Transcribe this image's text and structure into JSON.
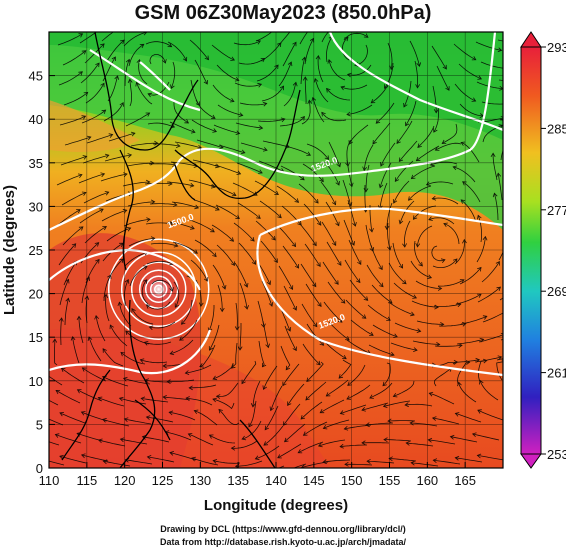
{
  "title": "GSM 06Z30May2023 (850.0hPa)",
  "x_axis": {
    "label": "Longitude (degrees)",
    "ticks": [
      110,
      115,
      120,
      125,
      130,
      135,
      140,
      145,
      150,
      155,
      160,
      165
    ],
    "range": [
      110,
      170
    ]
  },
  "y_axis": {
    "label": "Latitude (degrees)",
    "ticks": [
      0,
      5,
      10,
      15,
      20,
      25,
      30,
      35,
      40,
      45
    ],
    "range": [
      0,
      50
    ]
  },
  "colorbar": {
    "labels": [
      "293",
      "285",
      "277",
      "269",
      "261",
      "253"
    ],
    "values": [
      293,
      285,
      277,
      269,
      261,
      253
    ],
    "colors": [
      "#e0204a",
      "#f07020",
      "#f0c020",
      "#d0e020",
      "#50d020",
      "#20c0c0",
      "#2060e0",
      "#5020c0",
      "#d020c0"
    ]
  },
  "contours": [
    {
      "label": "1500.0",
      "lon": 127.5,
      "lat": 28.0
    },
    {
      "label": "1520.0",
      "lon": 146.5,
      "lat": 34.5
    },
    {
      "label": "1520.0",
      "lon": 147.5,
      "lat": 16.5
    }
  ],
  "features": {
    "typhoon_center": {
      "lon": 124.5,
      "lat": 20.5
    },
    "low_north": {
      "lon": 150.5,
      "lat": 48.5
    },
    "low_nw": {
      "lon": 124.0,
      "lat": 47.0
    },
    "high_east": {
      "lon": 161.5,
      "lat": 24.5
    },
    "low_south": {
      "lon": 135.0,
      "lat": 5.0
    }
  },
  "credits": {
    "line1": "Drawing by DCL (https://www.gfd-dennou.org/library/dcl/)",
    "line2": "Data from http://database.rish.kyoto-u.ac.jp/arch/jmadata/"
  }
}
